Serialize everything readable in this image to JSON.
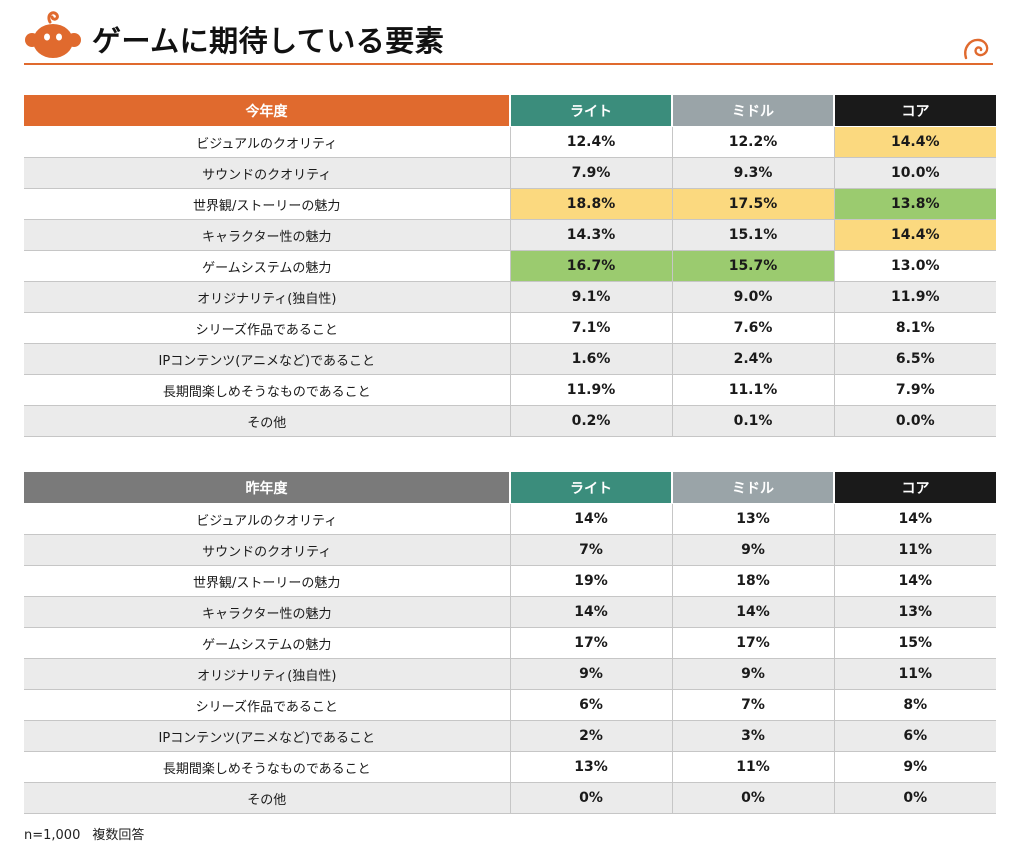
{
  "title": "ゲームに期待している要素",
  "colors": {
    "accent_orange": "#e06a2e",
    "light_header": "#3b8d7c",
    "middle_header": "#9aa4a8",
    "core_header": "#1a1a1a",
    "previous_label_header": "#7a7a7a",
    "highlight_yellow": "#fbd97f",
    "highlight_green": "#9bcb6f"
  },
  "chart_data": [
    {
      "type": "table",
      "title": "今年度",
      "columns": [
        "今年度",
        "ライト",
        "ミドル",
        "コア"
      ],
      "rows": [
        {
          "label": "ビジュアルのクオリティ",
          "values": [
            "12.4%",
            "12.2%",
            "14.4%"
          ],
          "highlight": [
            "",
            "",
            "yellow"
          ]
        },
        {
          "label": "サウンドのクオリティ",
          "values": [
            "7.9%",
            "9.3%",
            "10.0%"
          ],
          "highlight": [
            "",
            "",
            ""
          ]
        },
        {
          "label": "世界観/ストーリーの魅力",
          "values": [
            "18.8%",
            "17.5%",
            "13.8%"
          ],
          "highlight": [
            "yellow",
            "yellow",
            "green"
          ]
        },
        {
          "label": "キャラクター性の魅力",
          "values": [
            "14.3%",
            "15.1%",
            "14.4%"
          ],
          "highlight": [
            "",
            "",
            "yellow"
          ]
        },
        {
          "label": "ゲームシステムの魅力",
          "values": [
            "16.7%",
            "15.7%",
            "13.0%"
          ],
          "highlight": [
            "green",
            "green",
            ""
          ]
        },
        {
          "label": "オリジナリティ(独自性)",
          "values": [
            "9.1%",
            "9.0%",
            "11.9%"
          ],
          "highlight": [
            "",
            "",
            ""
          ]
        },
        {
          "label": "シリーズ作品であること",
          "values": [
            "7.1%",
            "7.6%",
            "8.1%"
          ],
          "highlight": [
            "",
            "",
            ""
          ]
        },
        {
          "label": "IPコンテンツ(アニメなど)であること",
          "values": [
            "1.6%",
            "2.4%",
            "6.5%"
          ],
          "highlight": [
            "",
            "",
            ""
          ]
        },
        {
          "label": "長期間楽しめそうなものであること",
          "values": [
            "11.9%",
            "11.1%",
            "7.9%"
          ],
          "highlight": [
            "",
            "",
            ""
          ]
        },
        {
          "label": "その他",
          "values": [
            "0.2%",
            "0.1%",
            "0.0%"
          ],
          "highlight": [
            "",
            "",
            ""
          ]
        }
      ]
    },
    {
      "type": "table",
      "title": "昨年度",
      "columns": [
        "昨年度",
        "ライト",
        "ミドル",
        "コア"
      ],
      "rows": [
        {
          "label": "ビジュアルのクオリティ",
          "values": [
            "14%",
            "13%",
            "14%"
          ],
          "highlight": [
            "",
            "",
            ""
          ]
        },
        {
          "label": "サウンドのクオリティ",
          "values": [
            "7%",
            "9%",
            "11%"
          ],
          "highlight": [
            "",
            "",
            ""
          ]
        },
        {
          "label": "世界観/ストーリーの魅力",
          "values": [
            "19%",
            "18%",
            "14%"
          ],
          "highlight": [
            "",
            "",
            ""
          ]
        },
        {
          "label": "キャラクター性の魅力",
          "values": [
            "14%",
            "14%",
            "13%"
          ],
          "highlight": [
            "",
            "",
            ""
          ]
        },
        {
          "label": "ゲームシステムの魅力",
          "values": [
            "17%",
            "17%",
            "15%"
          ],
          "highlight": [
            "",
            "",
            ""
          ]
        },
        {
          "label": "オリジナリティ(独自性)",
          "values": [
            "9%",
            "9%",
            "11%"
          ],
          "highlight": [
            "",
            "",
            ""
          ]
        },
        {
          "label": "シリーズ作品であること",
          "values": [
            "6%",
            "7%",
            "8%"
          ],
          "highlight": [
            "",
            "",
            ""
          ]
        },
        {
          "label": "IPコンテンツ(アニメなど)であること",
          "values": [
            "2%",
            "3%",
            "6%"
          ],
          "highlight": [
            "",
            "",
            ""
          ]
        },
        {
          "label": "長期間楽しめそうなものであること",
          "values": [
            "13%",
            "11%",
            "9%"
          ],
          "highlight": [
            "",
            "",
            ""
          ]
        },
        {
          "label": "その他",
          "values": [
            "0%",
            "0%",
            "0%"
          ],
          "highlight": [
            "",
            "",
            ""
          ]
        }
      ]
    }
  ],
  "footnote": {
    "sample": "n=1,000",
    "note": "複数回答"
  }
}
